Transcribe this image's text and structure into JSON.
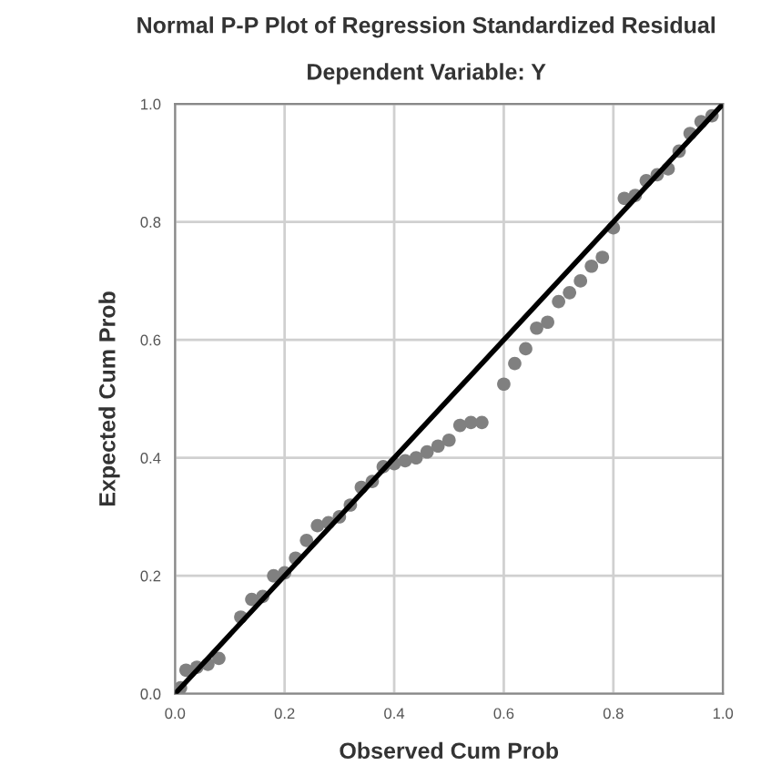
{
  "chart_data": {
    "type": "scatter",
    "title": "Normal P-P Plot of Regression Standardized Residual",
    "subtitle": "Dependent Variable: Y",
    "xlabel": "Observed Cum Prob",
    "ylabel": "Expected Cum Prob",
    "xlim": [
      0,
      1
    ],
    "ylim": [
      0,
      1
    ],
    "xticks": [
      {
        "value": 0,
        "label": "0.0"
      },
      {
        "value": 0.2,
        "label": "0.2"
      },
      {
        "value": 0.4,
        "label": "0.4"
      },
      {
        "value": 0.6,
        "label": "0.6"
      },
      {
        "value": 0.8,
        "label": "0.8"
      },
      {
        "value": 1,
        "label": "1.0"
      }
    ],
    "yticks": [
      {
        "value": 0,
        "label": "0.0"
      },
      {
        "value": 0.2,
        "label": "0.2"
      },
      {
        "value": 0.4,
        "label": "0.4"
      },
      {
        "value": 0.6,
        "label": "0.6"
      },
      {
        "value": 0.8,
        "label": "0.8"
      },
      {
        "value": 1,
        "label": "1.0"
      }
    ],
    "grid": true,
    "series": [
      {
        "marker": "circle",
        "color": "#808080",
        "x": [
          0.01,
          0.02,
          0.04,
          0.06,
          0.08,
          0.12,
          0.14,
          0.16,
          0.18,
          0.2,
          0.22,
          0.24,
          0.26,
          0.28,
          0.3,
          0.32,
          0.34,
          0.36,
          0.38,
          0.4,
          0.42,
          0.44,
          0.46,
          0.48,
          0.5,
          0.52,
          0.54,
          0.56,
          0.6,
          0.62,
          0.64,
          0.66,
          0.68,
          0.7,
          0.72,
          0.74,
          0.76,
          0.78,
          0.8,
          0.82,
          0.84,
          0.86,
          0.88,
          0.9,
          0.92,
          0.94,
          0.96,
          0.98
        ],
        "values": [
          0.01,
          0.04,
          0.045,
          0.05,
          0.06,
          0.13,
          0.16,
          0.165,
          0.2,
          0.205,
          0.23,
          0.26,
          0.285,
          0.29,
          0.3,
          0.32,
          0.35,
          0.36,
          0.385,
          0.39,
          0.395,
          0.4,
          0.41,
          0.42,
          0.43,
          0.455,
          0.46,
          0.46,
          0.525,
          0.56,
          0.585,
          0.62,
          0.63,
          0.665,
          0.68,
          0.7,
          0.725,
          0.74,
          0.79,
          0.84,
          0.845,
          0.87,
          0.88,
          0.89,
          0.92,
          0.95,
          0.97,
          0.98
        ]
      },
      {
        "type": "line",
        "color": "#000000",
        "x": [
          0,
          1
        ],
        "values": [
          0,
          1
        ]
      }
    ]
  }
}
